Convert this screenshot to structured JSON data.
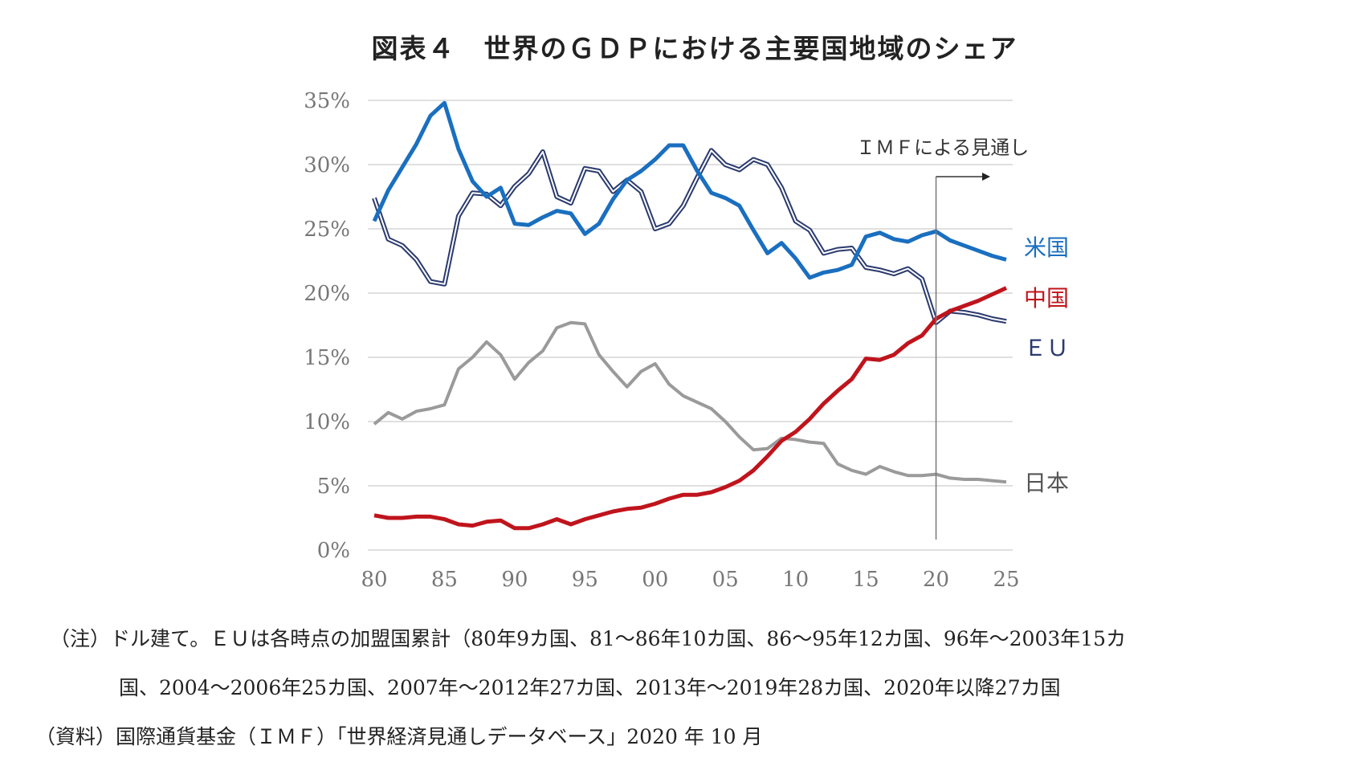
{
  "chart_data": {
    "type": "line",
    "title": "図表４　世界のＧＤＰにおける主要国地域のシェア",
    "x": [
      1980,
      1981,
      1982,
      1983,
      1984,
      1985,
      1986,
      1987,
      1988,
      1989,
      1990,
      1991,
      1992,
      1993,
      1994,
      1995,
      1996,
      1997,
      1998,
      1999,
      2000,
      2001,
      2002,
      2003,
      2004,
      2005,
      2006,
      2007,
      2008,
      2009,
      2010,
      2011,
      2012,
      2013,
      2014,
      2015,
      2016,
      2017,
      2018,
      2019,
      2020,
      2021,
      2022,
      2023,
      2024,
      2025
    ],
    "x_tick_values": [
      1980,
      1985,
      1990,
      1995,
      2000,
      2005,
      2010,
      2015,
      2020,
      2025
    ],
    "x_tick_labels": [
      "80",
      "85",
      "90",
      "95",
      "00",
      "05",
      "10",
      "15",
      "20",
      "25"
    ],
    "y_ticks": [
      "0%",
      "5%",
      "10%",
      "15%",
      "20%",
      "25%",
      "30%",
      "35%"
    ],
    "ylim": [
      0,
      35
    ],
    "grid": "horizontal",
    "series": [
      {
        "name": "米国",
        "color": "#1a6fbf",
        "style": "solid",
        "values": [
          25.6,
          28.0,
          29.8,
          31.6,
          33.8,
          34.8,
          31.2,
          28.7,
          27.5,
          28.2,
          25.4,
          25.3,
          25.9,
          26.4,
          26.2,
          24.6,
          25.4,
          27.3,
          28.8,
          29.5,
          30.4,
          31.5,
          31.5,
          29.5,
          27.8,
          27.4,
          26.8,
          24.9,
          23.1,
          23.9,
          22.7,
          21.2,
          21.6,
          21.8,
          22.2,
          24.4,
          24.7,
          24.2,
          24.0,
          24.5,
          24.8,
          24.1,
          23.7,
          23.3,
          22.9,
          22.6
        ]
      },
      {
        "name": "中国",
        "color": "#c0141c",
        "style": "solid",
        "values": [
          2.7,
          2.5,
          2.5,
          2.6,
          2.6,
          2.4,
          2.0,
          1.9,
          2.2,
          2.3,
          1.7,
          1.7,
          2.0,
          2.4,
          2.0,
          2.4,
          2.7,
          3.0,
          3.2,
          3.3,
          3.6,
          4.0,
          4.3,
          4.3,
          4.5,
          4.9,
          5.4,
          6.2,
          7.3,
          8.5,
          9.2,
          10.2,
          11.4,
          12.4,
          13.3,
          14.9,
          14.8,
          15.2,
          16.1,
          16.7,
          18.0,
          18.6,
          19.0,
          19.4,
          19.9,
          20.4
        ]
      },
      {
        "name": "ＥＵ",
        "color": "#2a3a6e",
        "style": "double",
        "values": [
          27.4,
          24.2,
          23.7,
          22.6,
          20.9,
          20.7,
          26.0,
          27.8,
          27.7,
          26.8,
          28.3,
          29.3,
          31.0,
          27.5,
          27.0,
          29.7,
          29.5,
          27.9,
          28.8,
          27.9,
          25.0,
          25.4,
          26.8,
          29.0,
          31.1,
          30.0,
          29.6,
          30.4,
          30.0,
          28.2,
          25.6,
          24.9,
          23.1,
          23.4,
          23.5,
          22.0,
          21.8,
          21.5,
          21.9,
          21.1,
          17.7,
          18.6,
          18.5,
          18.3,
          18.0,
          17.8
        ]
      },
      {
        "name": "日本",
        "color": "#9a9a9a",
        "style": "solid",
        "values": [
          9.8,
          10.7,
          10.2,
          10.8,
          11.0,
          11.3,
          14.1,
          15.0,
          16.2,
          15.2,
          13.3,
          14.6,
          15.5,
          17.3,
          17.7,
          17.6,
          15.2,
          13.9,
          12.7,
          13.9,
          14.5,
          12.9,
          12.0,
          11.5,
          11.0,
          10.0,
          8.8,
          7.8,
          7.9,
          8.7,
          8.6,
          8.4,
          8.3,
          6.7,
          6.2,
          5.9,
          6.5,
          6.1,
          5.8,
          5.8,
          5.9,
          5.6,
          5.5,
          5.5,
          5.4,
          5.3
        ]
      }
    ],
    "annotation": {
      "text": "ＩＭＦによる見通し",
      "x": 2020
    }
  },
  "notes": {
    "note1": "（注）ドル建て。ＥＵは各時点の加盟国累計（80年9カ国、81～86年10カ国、86～95年12カ国、96年～2003年15カ",
    "note2": "国、2004～2006年25カ国、2007年～2012年27カ国、2013年～2019年28カ国、2020年以降27カ国",
    "source": "（資料）国際通貨基金（ＩＭＦ）「世界経済見通しデータベース」2020 年 10 月"
  }
}
